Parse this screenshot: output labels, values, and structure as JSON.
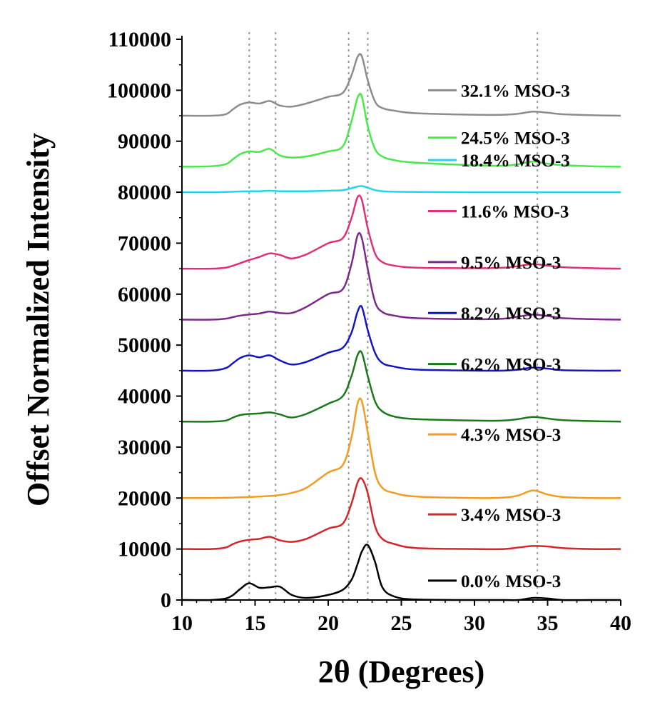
{
  "chart_data": {
    "type": "line",
    "title": "",
    "xlabel": "2θ (Degrees)",
    "ylabel": "Offset Normalized Intensity",
    "xlim": [
      10,
      40
    ],
    "ylim": [
      0,
      110000
    ],
    "x_ticks": [
      10,
      15,
      20,
      25,
      30,
      35,
      40
    ],
    "x_tick_labels": [
      "10",
      "15",
      "20",
      "25",
      "30",
      "35",
      "40"
    ],
    "y_ticks": [
      0,
      10000,
      20000,
      30000,
      40000,
      50000,
      60000,
      70000,
      80000,
      90000,
      100000,
      110000
    ],
    "y_tick_labels": [
      "0",
      "10000",
      "20000",
      "30000",
      "40000",
      "50000",
      "60000",
      "70000",
      "80000",
      "90000",
      "100000",
      "110000"
    ],
    "grid": false,
    "legend": "right, stacked beside each curve",
    "reference_lines_x": [
      14.6,
      16.4,
      21.4,
      22.7,
      34.3
    ],
    "x": [
      10,
      12,
      13,
      13.5,
      14,
      14.6,
      15.3,
      16,
      16.7,
      17.5,
      18.5,
      20,
      21,
      21.6,
      22,
      22.3,
      22.7,
      23.2,
      23.7,
      24.5,
      26,
      30,
      32,
      33,
      34,
      35,
      36,
      38,
      40
    ],
    "series": [
      {
        "name": "0.0% MSO-3",
        "color": "#000000",
        "values": [
          0,
          0,
          300,
          1000,
          2200,
          3300,
          2400,
          2500,
          2600,
          1000,
          400,
          1000,
          2000,
          4000,
          7000,
          9500,
          10800,
          7500,
          2500,
          700,
          100,
          0,
          0,
          0,
          400,
          300,
          0,
          0,
          0
        ]
      },
      {
        "name": "3.4% MSO-3",
        "color": "#d62728",
        "values": [
          10000,
          10000,
          10300,
          11000,
          11500,
          11800,
          12000,
          12400,
          11700,
          11400,
          12000,
          14000,
          15000,
          19000,
          23000,
          23800,
          21000,
          14500,
          12000,
          11000,
          10200,
          10000,
          10000,
          10300,
          10600,
          10500,
          10200,
          10000,
          10000
        ]
      },
      {
        "name": "4.3% MSO-3",
        "color": "#f39c1f",
        "values": [
          20000,
          20000,
          20050,
          20100,
          20150,
          20200,
          20300,
          20400,
          20600,
          21000,
          22000,
          25000,
          26500,
          32000,
          38500,
          39000,
          33000,
          25000,
          22000,
          21000,
          20300,
          20000,
          20100,
          20500,
          21500,
          20700,
          20200,
          20000,
          20000
        ]
      },
      {
        "name": "6.2% MSO-3",
        "color": "#1a7a1a",
        "values": [
          35000,
          35000,
          35200,
          35800,
          36300,
          36500,
          36600,
          36800,
          36400,
          35800,
          36500,
          38500,
          40000,
          44000,
          48000,
          48500,
          44000,
          39000,
          37000,
          36000,
          35500,
          35200,
          35200,
          35500,
          35900,
          35600,
          35300,
          35100,
          35000
        ]
      },
      {
        "name": "8.2% MSO-3",
        "color": "#1515c8",
        "values": [
          45000,
          45000,
          45500,
          46500,
          47500,
          48000,
          47600,
          48000,
          47000,
          46200,
          46700,
          48500,
          49500,
          52500,
          56500,
          57500,
          53000,
          48500,
          46500,
          45800,
          45200,
          45000,
          45000,
          45200,
          45600,
          45400,
          45100,
          45000,
          45000
        ]
      },
      {
        "name": "9.5% MSO-3",
        "color": "#7b2a8c",
        "values": [
          55000,
          55000,
          55200,
          55500,
          55800,
          56000,
          56200,
          56600,
          56300,
          56300,
          57500,
          60000,
          61000,
          66000,
          71500,
          71000,
          65000,
          58500,
          56500,
          55800,
          55300,
          55100,
          55200,
          55600,
          56000,
          55700,
          55300,
          55100,
          55000
        ]
      },
      {
        "name": "11.6% MSO-3",
        "color": "#e0307a",
        "values": [
          65000,
          65000,
          65200,
          65600,
          66100,
          66700,
          67300,
          68000,
          67700,
          67000,
          67800,
          70000,
          71000,
          75000,
          79000,
          78500,
          73000,
          68000,
          66300,
          65600,
          65200,
          65100,
          65200,
          65500,
          65900,
          65600,
          65300,
          65100,
          65000
        ]
      },
      {
        "name": "18.4% MSO-3",
        "color": "#1ed8e8",
        "values": [
          80000,
          80000,
          80050,
          80100,
          80150,
          80200,
          80200,
          80300,
          80200,
          80200,
          80200,
          80300,
          80400,
          80800,
          81100,
          81200,
          80900,
          80400,
          80200,
          80100,
          80050,
          80000,
          80000,
          80000,
          80000,
          80000,
          80000,
          80000,
          80000
        ]
      },
      {
        "name": "24.5% MSO-3",
        "color": "#4ae84a",
        "values": [
          85000,
          85100,
          85500,
          86500,
          87500,
          88000,
          87900,
          88500,
          87200,
          86800,
          87000,
          88000,
          89000,
          94000,
          98500,
          98800,
          93000,
          88500,
          87000,
          86300,
          85800,
          85300,
          85200,
          85500,
          86000,
          85600,
          85300,
          85100,
          85000
        ]
      },
      {
        "name": "32.1% MSO-3",
        "color": "#8c8c8c",
        "values": [
          95000,
          95000,
          95300,
          96300,
          97200,
          97600,
          97400,
          97900,
          97000,
          96800,
          97400,
          98700,
          99500,
          103000,
          106500,
          106700,
          102000,
          97800,
          96500,
          96000,
          95500,
          95200,
          95200,
          95400,
          95800,
          95600,
          95300,
          95100,
          95000
        ]
      }
    ],
    "legend_entries": [
      {
        "label": "32.1% MSO-3",
        "color": "#8c8c8c",
        "y_value": 100000
      },
      {
        "label": "24.5% MSO-3",
        "color": "#4ae84a",
        "y_value": 90700
      },
      {
        "label": "18.4% MSO-3",
        "color": "#1ed8e8",
        "y_value": 86300
      },
      {
        "label": "11.6% MSO-3",
        "color": "#e0307a",
        "y_value": 76300
      },
      {
        "label": "9.5% MSO-3",
        "color": "#7b2a8c",
        "y_value": 66300
      },
      {
        "label": "8.2% MSO-3",
        "color": "#1515c8",
        "y_value": 56300
      },
      {
        "label": "6.2% MSO-3",
        "color": "#1a7a1a",
        "y_value": 46300
      },
      {
        "label": "4.3% MSO-3",
        "color": "#f39c1f",
        "y_value": 32500
      },
      {
        "label": "3.4% MSO-3",
        "color": "#d62728",
        "y_value": 16800
      },
      {
        "label": "0.0% MSO-3",
        "color": "#000000",
        "y_value": 3800
      }
    ]
  }
}
